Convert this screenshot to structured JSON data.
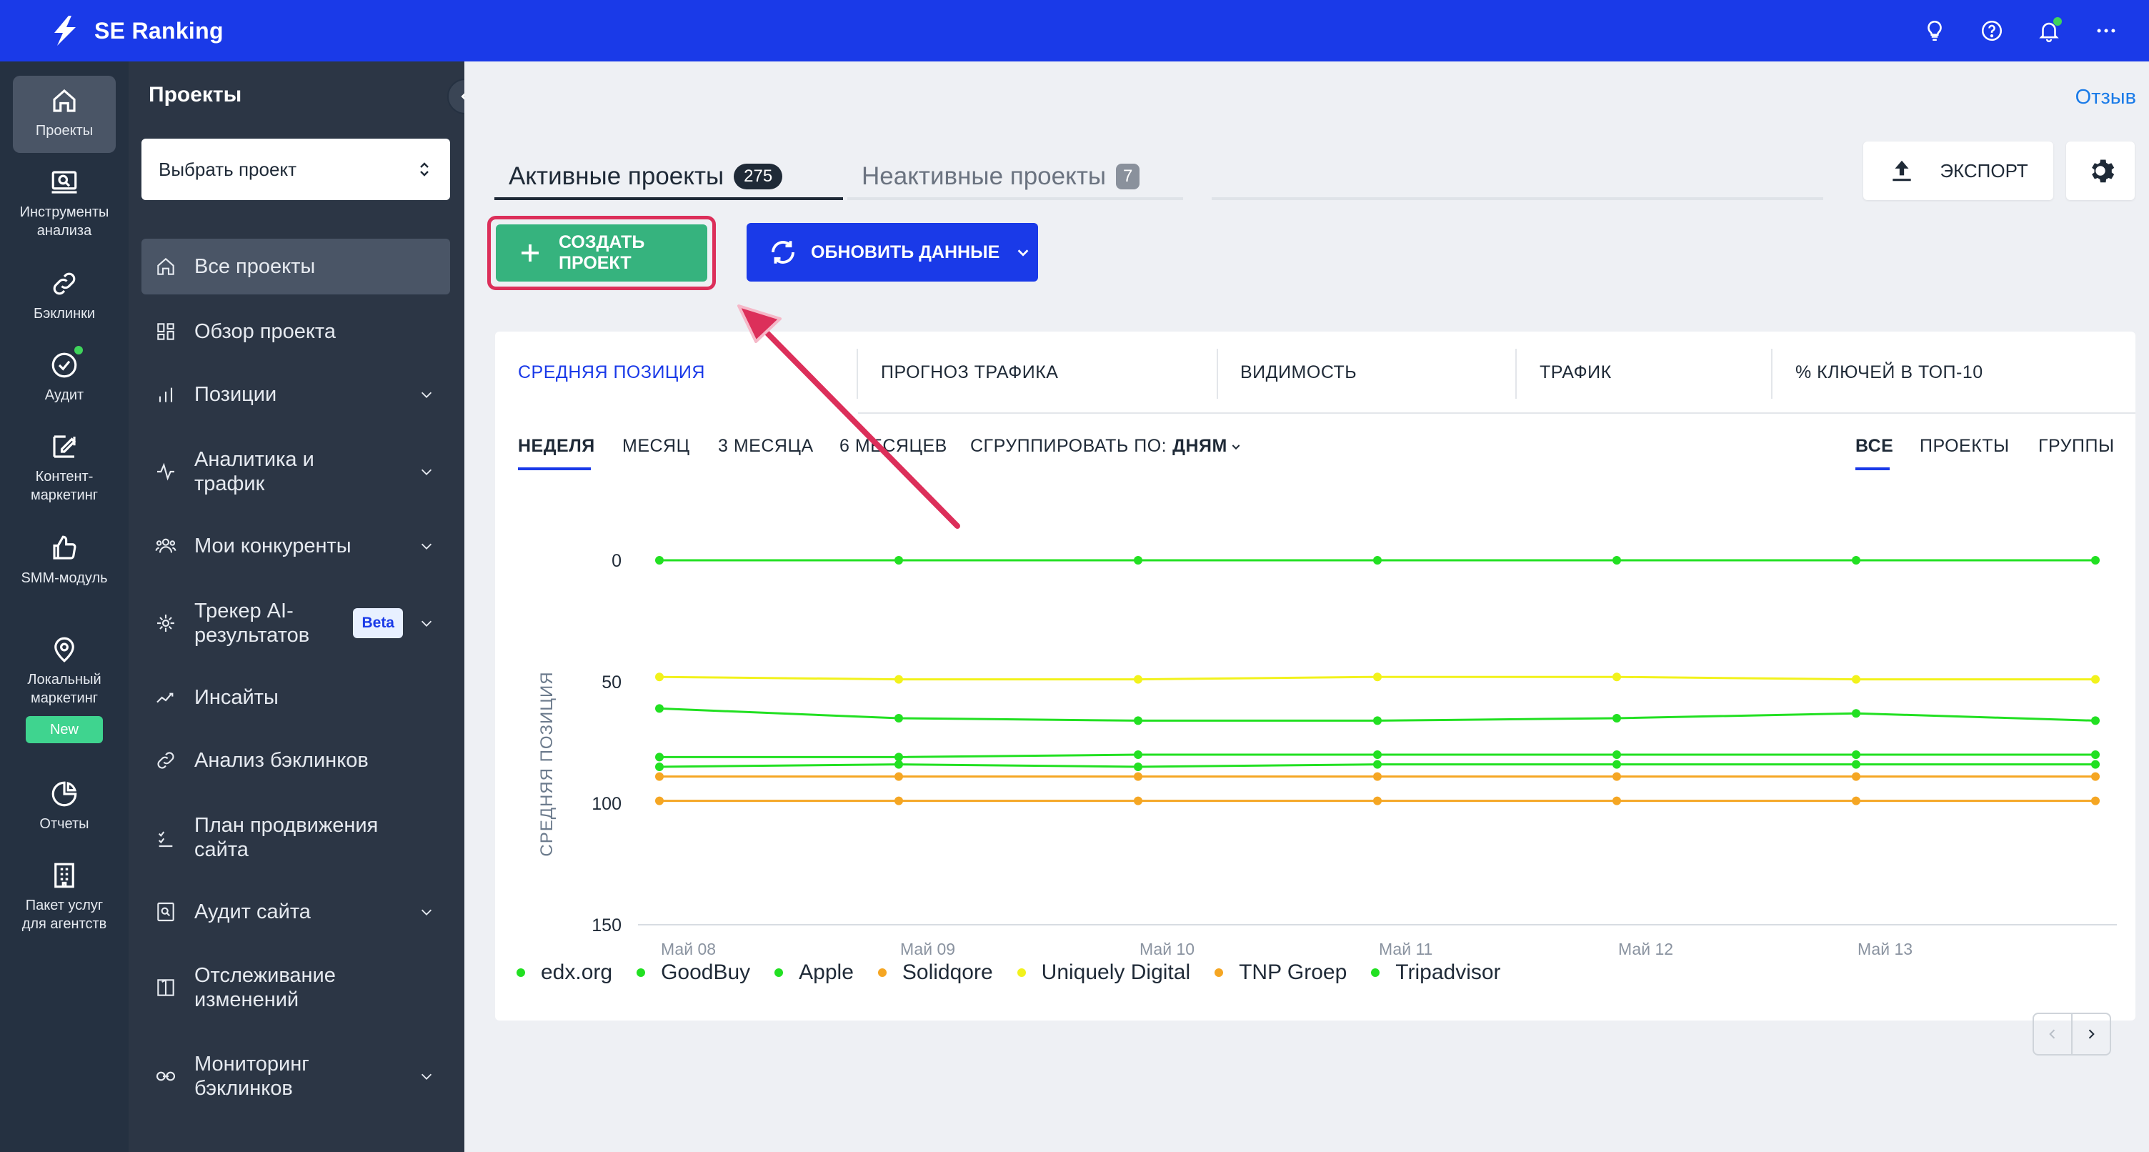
{
  "app": {
    "name": "SE Ranking"
  },
  "topbar": {
    "icons": [
      "lightbulb-icon",
      "help-icon",
      "bell-icon",
      "more-icon"
    ]
  },
  "rail": {
    "items": [
      {
        "label": "Проекты",
        "icon": "home-icon",
        "active": true
      },
      {
        "label": "Инструменты анализа",
        "icon": "analysis-icon"
      },
      {
        "label": "Бэклинки",
        "icon": "link-icon"
      },
      {
        "label": "Аудит",
        "icon": "check-circle-icon"
      },
      {
        "label": "Контент-маркетинг",
        "icon": "edit-icon"
      },
      {
        "label": "SMM-модуль",
        "icon": "thumbs-up-icon"
      },
      {
        "label": "Локальный маркетинг",
        "icon": "location-pin-icon",
        "badge": "New"
      },
      {
        "label": "Отчеты",
        "icon": "pie-chart-icon"
      },
      {
        "label": "Пакет услуг для агентств",
        "icon": "building-icon"
      }
    ]
  },
  "sidebar": {
    "title": "Проекты",
    "select_placeholder": "Выбрать проект",
    "items": [
      {
        "label": "Все проекты",
        "icon": "home-icon",
        "active": true
      },
      {
        "label": "Обзор проекта",
        "icon": "dashboard-icon"
      },
      {
        "label": "Позиции",
        "icon": "bar-chart-icon",
        "chevron": true
      },
      {
        "label": "Аналитика и трафик",
        "icon": "pulse-icon",
        "chevron": true
      },
      {
        "label": "Мои конкуренты",
        "icon": "users-icon",
        "chevron": true
      },
      {
        "label": "Трекер AI-результатов",
        "icon": "ai-icon",
        "chevron": true,
        "badge": "Beta"
      },
      {
        "label": "Инсайты",
        "icon": "trend-icon"
      },
      {
        "label": "Анализ бэклинков",
        "icon": "link-icon"
      },
      {
        "label": "План продвижения сайта",
        "icon": "checklist-icon"
      },
      {
        "label": "Аудит сайта",
        "icon": "audit-icon",
        "chevron": true
      },
      {
        "label": "Отслеживание изменений",
        "icon": "compare-icon"
      },
      {
        "label": "Мониторинг бэклинков",
        "icon": "link-monitor-icon",
        "chevron": true
      }
    ]
  },
  "main": {
    "feedback": "Отзыв",
    "tabs": [
      {
        "label": "Активные проекты",
        "count": "275"
      },
      {
        "label": "Неактивные проекты",
        "count": "7"
      }
    ],
    "export_label": "ЭКСПОРТ",
    "create_label": "СОЗДАТЬ ПРОЕКТ",
    "update_label": "ОБНОВИТЬ ДАННЫЕ"
  },
  "card": {
    "metrics": [
      "СРЕДНЯЯ ПОЗИЦИЯ",
      "ПРОГНОЗ ТРАФИКА",
      "ВИДИМОСТЬ",
      "ТРАФИК",
      "% КЛЮЧЕЙ В ТОП-10"
    ],
    "periods": [
      "НЕДЕЛЯ",
      "МЕСЯЦ",
      "3 МЕСЯЦА",
      "6 МЕСЯЦЕВ"
    ],
    "group_by_label": "СГРУППИРОВАТЬ ПО:",
    "group_by_value": "ДНЯМ",
    "views": [
      "ВСЕ",
      "ПРОЕКТЫ",
      "ГРУППЫ"
    ]
  },
  "colors": {
    "green": "#22e022",
    "yellow": "#f2f21c",
    "orange": "#f5a623"
  },
  "chart_data": {
    "type": "line",
    "ylabel": "СРЕДНЯЯ ПОЗИЦИЯ",
    "ylim": [
      0,
      150
    ],
    "y_inverted": true,
    "yticks": [
      0,
      50,
      100,
      150
    ],
    "x": [
      "Май 08",
      "Май 09",
      "Май 10",
      "Май 11",
      "Май 12",
      "Май 13",
      ""
    ],
    "xtick_labels": [
      "Май 08",
      "Май 09",
      "Май 10",
      "Май 11",
      "Май 12",
      "Май 13"
    ],
    "series": [
      {
        "name": "edx.org",
        "color": "#22e022",
        "values": [
          0,
          0,
          0,
          0,
          0,
          0,
          0
        ]
      },
      {
        "name": "GoodBuy",
        "color": "#22e022",
        "values": [
          61,
          65,
          66,
          66,
          65,
          63,
          66
        ]
      },
      {
        "name": "Apple",
        "color": "#22e022",
        "values": [
          81,
          81,
          80,
          80,
          80,
          80,
          80
        ]
      },
      {
        "name": "Solidqore",
        "color": "#f5a623",
        "values": [
          99,
          99,
          99,
          99,
          99,
          99,
          99
        ]
      },
      {
        "name": "Uniquely Digital",
        "color": "#f2f21c",
        "values": [
          48,
          49,
          49,
          48,
          48,
          49,
          49
        ]
      },
      {
        "name": "TNP Groep",
        "color": "#f5a623",
        "values": [
          89,
          89,
          89,
          89,
          89,
          89,
          89
        ]
      },
      {
        "name": "Tripadvisor",
        "color": "#22e022",
        "values": [
          85,
          84,
          85,
          84,
          84,
          84,
          84
        ]
      }
    ],
    "legend": "bottom"
  }
}
